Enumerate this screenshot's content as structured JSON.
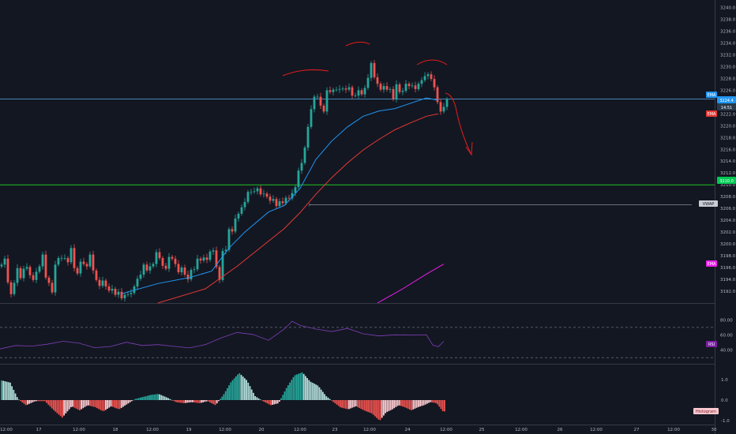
{
  "chart_data": {
    "type": "candlestick",
    "colors": {
      "background": "#131722",
      "up": "#26a69a",
      "down": "#ef5350",
      "ema_fast": "#2196f3",
      "ema_slow": "#e53935",
      "ema_long": "#e91ee8",
      "support_line": "#22c522",
      "rsi_line": "#7e3fb6",
      "annotation": "#e11d1d",
      "hist_up_strong": "#26a69a",
      "hist_up_weak": "#b2dfdb",
      "hist_down_strong": "#ef5350",
      "hist_down_weak": "#ffcdd2"
    },
    "price_axis": {
      "ylim": [
        3190.0,
        3240.6
      ],
      "ticks": [
        "3240.0",
        "3238.0",
        "3236.0",
        "3234.0",
        "3232.0",
        "3230.0",
        "3228.0",
        "3226.0",
        "3224.0",
        "3222.0",
        "3220.0",
        "3218.0",
        "3216.0",
        "3214.0",
        "3212.0",
        "3210.0",
        "3208.0",
        "3206.0",
        "3204.0",
        "3202.0",
        "3200.0",
        "3198.0",
        "3196.0",
        "3194.0",
        "3192.0"
      ]
    },
    "rsi_axis": {
      "ylim": [
        23,
        98
      ],
      "ticks": [
        "80.00",
        "60.00",
        "40.00"
      ],
      "bands": [
        70,
        30
      ]
    },
    "hist_axis": {
      "ylim": [
        -1.15,
        1.65
      ],
      "ticks": [
        "1.0",
        "0.0",
        "-1.0"
      ]
    },
    "time_axis": {
      "ticks": [
        "12:00",
        "17",
        "12:00",
        "18",
        "12:00",
        "19",
        "12:00",
        "20",
        "12:00",
        "23",
        "12:00",
        "24",
        "12:00",
        "25",
        "12:00",
        "26",
        "12:00",
        "27",
        "12:00",
        "30"
      ]
    },
    "price_labels": {
      "ema_fast": "EMA",
      "ema_fast_value": "3224.4",
      "countdown": "14:51",
      "ema_slow": "EMA",
      "support": "3210.0",
      "vwap": "VWAP",
      "ema_long": "EMA"
    },
    "rsi_label": "RSI",
    "hist_label": "Histogram",
    "levels": {
      "support": 3210.0,
      "ema_fast_level": 3224.5,
      "vwap": 3206.6
    },
    "candle_closes": [
      3196.5,
      3197.5,
      3193.5,
      3191.5,
      3193.4,
      3195.9,
      3194.2,
      3195.8,
      3196.1,
      3194.7,
      3193.9,
      3195.3,
      3196.2,
      3198.2,
      3194.3,
      3193.4,
      3191.8,
      3196.5,
      3197.6,
      3197.6,
      3197.6,
      3196.9,
      3199.3,
      3195.9,
      3195.0,
      3197.0,
      3196.6,
      3196.2,
      3198.2,
      3195.5,
      3193.9,
      3192.9,
      3193.8,
      3192.8,
      3192.1,
      3192.4,
      3191.4,
      3191.9,
      3190.8,
      3191.4,
      3191.5,
      3191.7,
      3192.8,
      3194.1,
      3194.8,
      3196.5,
      3195.5,
      3196.2,
      3196.6,
      3198.6,
      3197.6,
      3196.3,
      3195.8,
      3197.8,
      3197.5,
      3196.6,
      3195.2,
      3196.0,
      3194.8,
      3194.0,
      3195.6,
      3195.7,
      3197.5,
      3197.2,
      3197.7,
      3197.3,
      3198.7,
      3198.9,
      3196.1,
      3193.9,
      3198.8,
      3199.0,
      3202.5,
      3202.1,
      3204.3,
      3205.1,
      3206.2,
      3207.1,
      3208.8,
      3208.8,
      3208.9,
      3209.4,
      3208.4,
      3208.5,
      3208.0,
      3207.3,
      3207.6,
      3206.4,
      3207.2,
      3206.9,
      3207.8,
      3207.7,
      3208.6,
      3209.6,
      3212.4,
      3213.7,
      3216.3,
      3219.8,
      3222.8,
      3224.9,
      3224.9,
      3223.4,
      3222.4,
      3226.0,
      3225.7,
      3226.1,
      3226.1,
      3226.2,
      3226.3,
      3226.1,
      3226.5,
      3225.1,
      3225.1,
      3226.0,
      3225.3,
      3226.4,
      3228.1,
      3230.6,
      3228.2,
      3227.1,
      3226.1,
      3226.7,
      3226.1,
      3226.2,
      3224.5,
      3227.0,
      3225.7,
      3225.9,
      3227.1,
      3226.7,
      3226.8,
      3226.2,
      3227.1,
      3227.7,
      3228.4,
      3228.7,
      3227.9,
      3226.5,
      3224.0,
      3222.4,
      3223.2,
      3224.5
    ],
    "ema_fast_points": [
      [
        155,
        3191.6
      ],
      [
        200,
        3193.3
      ],
      [
        240,
        3194.3
      ],
      [
        268,
        3195.4
      ],
      [
        290,
        3199.3
      ],
      [
        310,
        3202.0
      ],
      [
        340,
        3205.4
      ],
      [
        360,
        3206.5
      ],
      [
        380,
        3209.4
      ],
      [
        400,
        3214.3
      ],
      [
        420,
        3217.4
      ],
      [
        440,
        3219.8
      ],
      [
        460,
        3221.6
      ],
      [
        480,
        3222.5
      ],
      [
        500,
        3222.9
      ],
      [
        520,
        3223.8
      ],
      [
        540,
        3224.7
      ],
      [
        555,
        3224.3
      ]
    ],
    "ema_slow_points": [
      [
        200,
        3190.0
      ],
      [
        260,
        3192.4
      ],
      [
        300,
        3196.2
      ],
      [
        330,
        3199.4
      ],
      [
        360,
        3202.6
      ],
      [
        380,
        3205.3
      ],
      [
        400,
        3208.4
      ],
      [
        420,
        3211.2
      ],
      [
        440,
        3213.7
      ],
      [
        460,
        3215.9
      ],
      [
        480,
        3217.7
      ],
      [
        500,
        3219.3
      ],
      [
        520,
        3220.5
      ],
      [
        540,
        3221.6
      ],
      [
        555,
        3222.0
      ]
    ],
    "ema_long_points": [
      [
        478,
        3190.0
      ],
      [
        510,
        3192.4
      ],
      [
        540,
        3194.9
      ],
      [
        562,
        3196.6
      ]
    ],
    "rsi_points": [
      [
        0,
        41.5
      ],
      [
        20,
        46.1
      ],
      [
        40,
        45.3
      ],
      [
        60,
        47.8
      ],
      [
        80,
        51.6
      ],
      [
        100,
        49.1
      ],
      [
        120,
        43.2
      ],
      [
        140,
        44.8
      ],
      [
        160,
        50.4
      ],
      [
        180,
        46.1
      ],
      [
        200,
        47.3
      ],
      [
        220,
        45.0
      ],
      [
        240,
        42.9
      ],
      [
        260,
        47.3
      ],
      [
        280,
        56.1
      ],
      [
        300,
        63.3
      ],
      [
        320,
        60.7
      ],
      [
        340,
        53.0
      ],
      [
        360,
        67.8
      ],
      [
        370,
        78.1
      ],
      [
        380,
        72.6
      ],
      [
        400,
        67.8
      ],
      [
        420,
        64.5
      ],
      [
        440,
        68.6
      ],
      [
        460,
        61.5
      ],
      [
        480,
        58.7
      ],
      [
        500,
        60.2
      ],
      [
        520,
        59.8
      ],
      [
        540,
        60.1
      ],
      [
        548,
        46.6
      ],
      [
        555,
        44.5
      ],
      [
        562,
        51.6
      ]
    ],
    "hist_points": [
      [
        2,
        0.95
      ],
      [
        12,
        0.85
      ],
      [
        22,
        0.05
      ],
      [
        32,
        -0.25
      ],
      [
        44,
        -0.05
      ],
      [
        56,
        -0.05
      ],
      [
        66,
        -0.45
      ],
      [
        78,
        -0.85
      ],
      [
        90,
        -0.3
      ],
      [
        100,
        -0.5
      ],
      [
        110,
        -0.25
      ],
      [
        120,
        -0.35
      ],
      [
        130,
        -0.55
      ],
      [
        140,
        -0.3
      ],
      [
        150,
        -0.45
      ],
      [
        160,
        -0.2
      ],
      [
        170,
        0.05
      ],
      [
        180,
        0.15
      ],
      [
        190,
        0.25
      ],
      [
        200,
        0.3
      ],
      [
        212,
        0.1
      ],
      [
        222,
        -0.1
      ],
      [
        232,
        -0.15
      ],
      [
        242,
        -0.1
      ],
      [
        252,
        -0.15
      ],
      [
        262,
        -0.05
      ],
      [
        272,
        -0.25
      ],
      [
        282,
        0.25
      ],
      [
        292,
        0.9
      ],
      [
        302,
        1.32
      ],
      [
        312,
        0.95
      ],
      [
        322,
        0.2
      ],
      [
        332,
        -0.05
      ],
      [
        342,
        -0.25
      ],
      [
        352,
        -0.15
      ],
      [
        362,
        0.6
      ],
      [
        372,
        1.2
      ],
      [
        382,
        1.35
      ],
      [
        392,
        0.9
      ],
      [
        402,
        0.7
      ],
      [
        412,
        0.2
      ],
      [
        420,
        -0.05
      ],
      [
        430,
        -0.35
      ],
      [
        440,
        -0.45
      ],
      [
        450,
        -0.3
      ],
      [
        460,
        -0.5
      ],
      [
        470,
        -0.65
      ],
      [
        480,
        -1.0
      ],
      [
        488,
        -0.6
      ],
      [
        496,
        -0.45
      ],
      [
        504,
        -0.25
      ],
      [
        512,
        -0.35
      ],
      [
        520,
        -0.5
      ],
      [
        528,
        -0.35
      ],
      [
        536,
        -0.25
      ],
      [
        544,
        -0.1
      ],
      [
        552,
        -0.15
      ],
      [
        560,
        -0.55
      ]
    ]
  }
}
